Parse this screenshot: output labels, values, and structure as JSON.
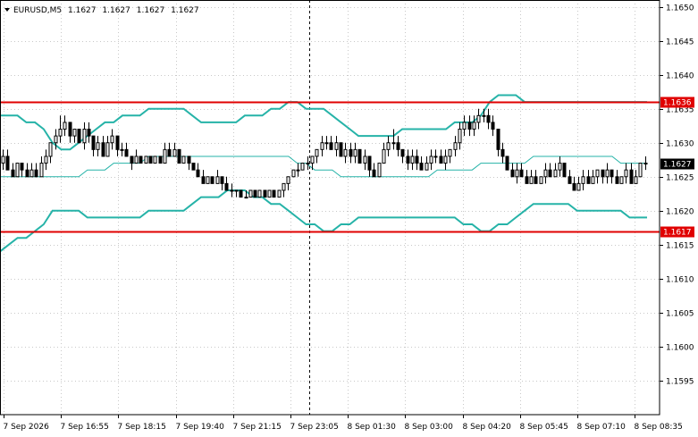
{
  "chart_data": {
    "type": "candlestick",
    "symbol_info": {
      "symbol": "EURUSD,M5",
      "ohlc": [
        "1.1627",
        "1.1627",
        "1.1627",
        "1.1627"
      ]
    },
    "ylim": [
      1.159,
      1.1651
    ],
    "y_ticks": [
      "1.1650",
      "1.1645",
      "1.1640",
      "1.1635",
      "1.1630",
      "1.1625",
      "1.1620",
      "1.1615",
      "1.1610",
      "1.1605",
      "1.1600",
      "1.1595"
    ],
    "x_ticks": [
      "7 Sep 2026",
      "7 Sep 16:55",
      "7 Sep 18:15",
      "7 Sep 19:40",
      "7 Sep 21:15",
      "7 Sep 23:05",
      "8 Sep 01:30",
      "8 Sep 03:00",
      "8 Sep 04:20",
      "8 Sep 05:45",
      "8 Sep 07:10",
      "8 Sep 08:35"
    ],
    "levels": [
      {
        "value": 1.1636,
        "label": "1.1636",
        "color": "#e00000"
      },
      {
        "value": 1.1617,
        "label": "1.1617",
        "color": "#e00000"
      }
    ],
    "current_price": {
      "value": 1.1627,
      "label": "1.1627"
    },
    "bollinger": {
      "upper": [
        1.1634,
        1.1634,
        1.1634,
        1.1633,
        1.1633,
        1.1632,
        1.163,
        1.1629,
        1.1629,
        1.163,
        1.1631,
        1.1632,
        1.1633,
        1.1633,
        1.1634,
        1.1634,
        1.1634,
        1.1635,
        1.1635,
        1.1635,
        1.1635,
        1.1635,
        1.1634,
        1.1633,
        1.1633,
        1.1633,
        1.1633,
        1.1633,
        1.1634,
        1.1634,
        1.1634,
        1.1635,
        1.1635,
        1.1636,
        1.1636,
        1.1635,
        1.1635,
        1.1635,
        1.1634,
        1.1633,
        1.1632,
        1.1631,
        1.1631,
        1.1631,
        1.1631,
        1.1631,
        1.1632,
        1.1632,
        1.1632,
        1.1632,
        1.1632,
        1.1632,
        1.1633,
        1.1633,
        1.1633,
        1.1634,
        1.1636,
        1.1637,
        1.1637,
        1.1637,
        1.1636,
        1.1636,
        1.1636,
        1.1636,
        1.1636,
        1.1636,
        1.1636,
        1.1636,
        1.1636,
        1.1636,
        1.1636,
        1.1636,
        1.1636,
        1.1636,
        1.1636
      ],
      "middle": [
        1.1625,
        1.1625,
        1.1625,
        1.1625,
        1.1625,
        1.1625,
        1.1625,
        1.1625,
        1.1625,
        1.1625,
        1.1626,
        1.1626,
        1.1626,
        1.1627,
        1.1627,
        1.1627,
        1.1627,
        1.1628,
        1.1628,
        1.1628,
        1.1628,
        1.1628,
        1.1628,
        1.1628,
        1.1628,
        1.1628,
        1.1628,
        1.1628,
        1.1628,
        1.1628,
        1.1628,
        1.1628,
        1.1628,
        1.1628,
        1.1627,
        1.1627,
        1.1626,
        1.1626,
        1.1626,
        1.1625,
        1.1625,
        1.1625,
        1.1625,
        1.1625,
        1.1625,
        1.1625,
        1.1625,
        1.1625,
        1.1625,
        1.1625,
        1.1626,
        1.1626,
        1.1626,
        1.1626,
        1.1626,
        1.1627,
        1.1627,
        1.1627,
        1.1627,
        1.1627,
        1.1627,
        1.1628,
        1.1628,
        1.1628,
        1.1628,
        1.1628,
        1.1628,
        1.1628,
        1.1628,
        1.1628,
        1.1628,
        1.1627,
        1.1627,
        1.1627,
        1.1627
      ],
      "lower": [
        1.1614,
        1.1615,
        1.1616,
        1.1616,
        1.1617,
        1.1618,
        1.162,
        1.162,
        1.162,
        1.162,
        1.1619,
        1.1619,
        1.1619,
        1.1619,
        1.1619,
        1.1619,
        1.1619,
        1.162,
        1.162,
        1.162,
        1.162,
        1.162,
        1.1621,
        1.1622,
        1.1622,
        1.1622,
        1.1623,
        1.1623,
        1.1623,
        1.1622,
        1.1622,
        1.1621,
        1.1621,
        1.162,
        1.1619,
        1.1618,
        1.1618,
        1.1617,
        1.1617,
        1.1618,
        1.1618,
        1.1619,
        1.1619,
        1.1619,
        1.1619,
        1.1619,
        1.1619,
        1.1619,
        1.1619,
        1.1619,
        1.1619,
        1.1619,
        1.1619,
        1.1618,
        1.1618,
        1.1617,
        1.1617,
        1.1618,
        1.1618,
        1.1619,
        1.162,
        1.1621,
        1.1621,
        1.1621,
        1.1621,
        1.1621,
        1.162,
        1.162,
        1.162,
        1.162,
        1.162,
        1.162,
        1.1619,
        1.1619,
        1.1619
      ]
    },
    "candles": [
      [
        1.1627,
        1.1629,
        1.1626,
        1.1628
      ],
      [
        1.1628,
        1.1629,
        1.1626,
        1.1626
      ],
      [
        1.1626,
        1.1627,
        1.1625,
        1.1625
      ],
      [
        1.1625,
        1.1627,
        1.1625,
        1.1627
      ],
      [
        1.1627,
        1.1627,
        1.1625,
        1.1626
      ],
      [
        1.1626,
        1.1627,
        1.1625,
        1.1625
      ],
      [
        1.1625,
        1.1627,
        1.1625,
        1.1626
      ],
      [
        1.1626,
        1.1627,
        1.1625,
        1.1625
      ],
      [
        1.1625,
        1.1628,
        1.1625,
        1.1627
      ],
      [
        1.1627,
        1.1629,
        1.1626,
        1.1628
      ],
      [
        1.1628,
        1.163,
        1.1627,
        1.163
      ],
      [
        1.163,
        1.1632,
        1.1629,
        1.1631
      ],
      [
        1.1631,
        1.1634,
        1.163,
        1.1632
      ],
      [
        1.1632,
        1.1634,
        1.1631,
        1.1633
      ],
      [
        1.1633,
        1.1633,
        1.163,
        1.1631
      ],
      [
        1.1631,
        1.1632,
        1.163,
        1.1632
      ],
      [
        1.1632,
        1.1632,
        1.163,
        1.163
      ],
      [
        1.163,
        1.1633,
        1.1629,
        1.1632
      ],
      [
        1.1632,
        1.1633,
        1.163,
        1.1631
      ],
      [
        1.1631,
        1.1631,
        1.1628,
        1.1629
      ],
      [
        1.1629,
        1.1631,
        1.1628,
        1.163
      ],
      [
        1.163,
        1.1631,
        1.1628,
        1.1628
      ],
      [
        1.1628,
        1.1631,
        1.1628,
        1.163
      ],
      [
        1.163,
        1.1632,
        1.1629,
        1.1631
      ],
      [
        1.1631,
        1.1631,
        1.1628,
        1.1629
      ],
      [
        1.1629,
        1.163,
        1.1628,
        1.1629
      ],
      [
        1.1629,
        1.163,
        1.1628,
        1.1628
      ],
      [
        1.1628,
        1.1628,
        1.1626,
        1.1627
      ],
      [
        1.1627,
        1.1629,
        1.1627,
        1.1628
      ],
      [
        1.1628,
        1.1628,
        1.1627,
        1.1627
      ],
      [
        1.1627,
        1.1628,
        1.1627,
        1.1628
      ],
      [
        1.1628,
        1.1628,
        1.1627,
        1.1627
      ],
      [
        1.1627,
        1.1628,
        1.1627,
        1.1628
      ],
      [
        1.1628,
        1.1628,
        1.1627,
        1.1627
      ],
      [
        1.1627,
        1.163,
        1.1627,
        1.1629
      ],
      [
        1.1629,
        1.163,
        1.1628,
        1.1628
      ],
      [
        1.1628,
        1.163,
        1.1628,
        1.1629
      ],
      [
        1.1629,
        1.1629,
        1.1627,
        1.1627
      ],
      [
        1.1627,
        1.1628,
        1.1627,
        1.1628
      ],
      [
        1.1628,
        1.1628,
        1.1626,
        1.1627
      ],
      [
        1.1627,
        1.1627,
        1.1626,
        1.1626
      ],
      [
        1.1626,
        1.1627,
        1.1625,
        1.1625
      ],
      [
        1.1625,
        1.1626,
        1.1624,
        1.1624
      ],
      [
        1.1624,
        1.1625,
        1.1624,
        1.1625
      ],
      [
        1.1625,
        1.1625,
        1.1624,
        1.1624
      ],
      [
        1.1624,
        1.1626,
        1.1624,
        1.1625
      ],
      [
        1.1625,
        1.1625,
        1.1623,
        1.1624
      ],
      [
        1.1624,
        1.1625,
        1.1623,
        1.1623
      ],
      [
        1.1623,
        1.1624,
        1.1622,
        1.1623
      ],
      [
        1.1623,
        1.1623,
        1.1622,
        1.1623
      ],
      [
        1.1623,
        1.1623,
        1.1622,
        1.1622
      ],
      [
        1.1622,
        1.1623,
        1.1622,
        1.1622
      ],
      [
        1.1622,
        1.1623,
        1.1622,
        1.1623
      ],
      [
        1.1623,
        1.1623,
        1.1622,
        1.1622
      ],
      [
        1.1622,
        1.1623,
        1.1622,
        1.1623
      ],
      [
        1.1623,
        1.1623,
        1.1622,
        1.1622
      ],
      [
        1.1622,
        1.1623,
        1.1622,
        1.1623
      ],
      [
        1.1623,
        1.1623,
        1.1622,
        1.1622
      ],
      [
        1.1622,
        1.1623,
        1.1622,
        1.1623
      ],
      [
        1.1623,
        1.1624,
        1.1622,
        1.1624
      ],
      [
        1.1624,
        1.1625,
        1.1623,
        1.1625
      ],
      [
        1.1625,
        1.1626,
        1.1625,
        1.1626
      ],
      [
        1.1626,
        1.1627,
        1.1625,
        1.1626
      ],
      [
        1.1626,
        1.1627,
        1.1626,
        1.1627
      ],
      [
        1.1627,
        1.1628,
        1.1626,
        1.1627
      ],
      [
        1.1627,
        1.1628,
        1.1626,
        1.1628
      ],
      [
        1.1628,
        1.1629,
        1.1627,
        1.1629
      ],
      [
        1.1629,
        1.1631,
        1.1628,
        1.163
      ],
      [
        1.163,
        1.1631,
        1.1629,
        1.163
      ],
      [
        1.163,
        1.1631,
        1.1629,
        1.1629
      ],
      [
        1.1629,
        1.1631,
        1.1628,
        1.163
      ],
      [
        1.163,
        1.163,
        1.1628,
        1.1628
      ],
      [
        1.1628,
        1.163,
        1.1627,
        1.1629
      ],
      [
        1.1629,
        1.163,
        1.1627,
        1.1628
      ],
      [
        1.1628,
        1.163,
        1.1627,
        1.1629
      ],
      [
        1.1629,
        1.1629,
        1.1627,
        1.1627
      ],
      [
        1.1627,
        1.1629,
        1.1626,
        1.1628
      ],
      [
        1.1628,
        1.1628,
        1.1625,
        1.1626
      ],
      [
        1.1626,
        1.1627,
        1.1625,
        1.1625
      ],
      [
        1.1625,
        1.1627,
        1.1625,
        1.1627
      ],
      [
        1.1627,
        1.163,
        1.1627,
        1.1629
      ],
      [
        1.1629,
        1.1631,
        1.1628,
        1.163
      ],
      [
        1.163,
        1.1632,
        1.1629,
        1.163
      ],
      [
        1.163,
        1.1631,
        1.1628,
        1.1629
      ],
      [
        1.1629,
        1.1629,
        1.1627,
        1.1628
      ],
      [
        1.1628,
        1.1629,
        1.1626,
        1.1627
      ],
      [
        1.1627,
        1.1629,
        1.1626,
        1.1628
      ],
      [
        1.1628,
        1.1629,
        1.1626,
        1.1627
      ],
      [
        1.1627,
        1.1628,
        1.1626,
        1.1626
      ],
      [
        1.1626,
        1.1628,
        1.1626,
        1.1627
      ],
      [
        1.1627,
        1.1629,
        1.1626,
        1.1628
      ],
      [
        1.1628,
        1.1629,
        1.1627,
        1.1628
      ],
      [
        1.1628,
        1.1629,
        1.1627,
        1.1627
      ],
      [
        1.1627,
        1.1629,
        1.1626,
        1.1628
      ],
      [
        1.1628,
        1.1629,
        1.1627,
        1.1629
      ],
      [
        1.1629,
        1.1631,
        1.1628,
        1.163
      ],
      [
        1.163,
        1.1633,
        1.1629,
        1.1632
      ],
      [
        1.1632,
        1.1634,
        1.1631,
        1.1633
      ],
      [
        1.1633,
        1.1634,
        1.1631,
        1.1632
      ],
      [
        1.1632,
        1.1634,
        1.1631,
        1.1633
      ],
      [
        1.1633,
        1.1635,
        1.1632,
        1.1634
      ],
      [
        1.1634,
        1.1635,
        1.1633,
        1.1634
      ],
      [
        1.1634,
        1.1635,
        1.1632,
        1.1633
      ],
      [
        1.1633,
        1.1634,
        1.1631,
        1.1632
      ],
      [
        1.1632,
        1.1632,
        1.1628,
        1.1629
      ],
      [
        1.1629,
        1.163,
        1.1627,
        1.1628
      ],
      [
        1.1628,
        1.1628,
        1.1626,
        1.1626
      ],
      [
        1.1626,
        1.1627,
        1.1625,
        1.1625
      ],
      [
        1.1625,
        1.1627,
        1.1624,
        1.1626
      ],
      [
        1.1626,
        1.1627,
        1.1625,
        1.1625
      ],
      [
        1.1625,
        1.1626,
        1.1624,
        1.1624
      ],
      [
        1.1624,
        1.1626,
        1.1624,
        1.1625
      ],
      [
        1.1625,
        1.1626,
        1.1624,
        1.1624
      ],
      [
        1.1624,
        1.1625,
        1.1624,
        1.1625
      ],
      [
        1.1625,
        1.1627,
        1.1624,
        1.1626
      ],
      [
        1.1626,
        1.1627,
        1.1625,
        1.1625
      ],
      [
        1.1625,
        1.1627,
        1.1625,
        1.1626
      ],
      [
        1.1626,
        1.1628,
        1.1625,
        1.1627
      ],
      [
        1.1627,
        1.1627,
        1.1625,
        1.1625
      ],
      [
        1.1625,
        1.1626,
        1.1624,
        1.1624
      ],
      [
        1.1624,
        1.1625,
        1.1623,
        1.1623
      ],
      [
        1.1623,
        1.1625,
        1.1623,
        1.1624
      ],
      [
        1.1624,
        1.1626,
        1.1623,
        1.1625
      ],
      [
        1.1625,
        1.1626,
        1.1624,
        1.1624
      ],
      [
        1.1624,
        1.1626,
        1.1624,
        1.1625
      ],
      [
        1.1625,
        1.1626,
        1.1624,
        1.1626
      ],
      [
        1.1626,
        1.1626,
        1.1624,
        1.1625
      ],
      [
        1.1625,
        1.1627,
        1.1624,
        1.1626
      ],
      [
        1.1626,
        1.1626,
        1.1624,
        1.1625
      ],
      [
        1.1625,
        1.1626,
        1.1624,
        1.1624
      ],
      [
        1.1624,
        1.1625,
        1.1624,
        1.1625
      ],
      [
        1.1625,
        1.1627,
        1.1624,
        1.1626
      ],
      [
        1.1626,
        1.1627,
        1.1624,
        1.1624
      ],
      [
        1.1624,
        1.1626,
        1.1624,
        1.1625
      ],
      [
        1.1625,
        1.1627,
        1.1625,
        1.1627
      ],
      [
        1.1627,
        1.1628,
        1.1626,
        1.1627
      ]
    ]
  }
}
